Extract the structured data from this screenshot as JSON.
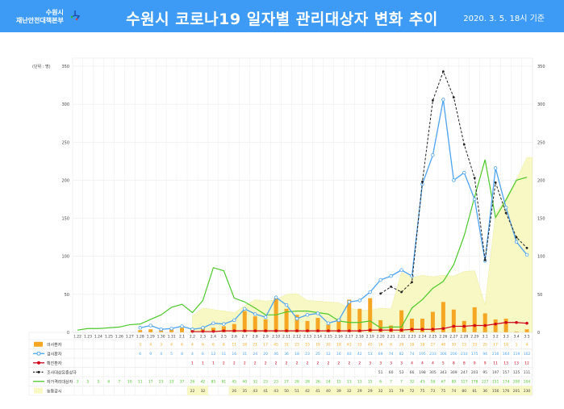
{
  "header": {
    "logo_line1": "수원시",
    "logo_line2": "재난안전대책본부",
    "title": "수원시 코로나19  일자별 관리대상자 변화 추이",
    "basis": "2020. 3. 5.  18시 기준"
  },
  "chart_data": {
    "type": "bar+line",
    "title": "수원시 코로나19 일자별 관리대상자 변화 추이",
    "unit_label": "(단위 : 명)",
    "ylim": [
      0,
      350
    ],
    "yticks": [
      0,
      50,
      100,
      150,
      200,
      250,
      300,
      350
    ],
    "grid": true,
    "categories": [
      "1.22",
      "1.23",
      "1.24",
      "1.25",
      "1.26",
      "1.27",
      "1.28",
      "1.29",
      "1.30",
      "1.31",
      "2.1",
      "2.2",
      "2.3",
      "2.4",
      "2.5",
      "2.6",
      "2.7",
      "2.8",
      "2.9",
      "2.10",
      "2.11",
      "2.12",
      "2.13",
      "2.14",
      "2.15",
      "2.16",
      "2.17",
      "2.18",
      "2.19",
      "2.20",
      "2.21",
      "2.22",
      "2.23",
      "2.24",
      "2.25",
      "2.26",
      "2.27",
      "2.28",
      "2.29",
      "3.1",
      "3.2",
      "3.3",
      "3.4",
      "3.5"
    ],
    "series": [
      {
        "name": "의사환자",
        "kind": "bar",
        "color": "#f5a623",
        "values": [
          null,
          null,
          null,
          null,
          null,
          null,
          3,
          4,
          3,
          4,
          6,
          4,
          6,
          6,
          8,
          11,
          28,
          21,
          17,
          45,
          31,
          23,
          15,
          19,
          10,
          18,
          43,
          31,
          45,
          16,
          9,
          29,
          18,
          18,
          27,
          40,
          30,
          15,
          33,
          25,
          17,
          18,
          1,
          4
        ]
      },
      {
        "name": "검사환자",
        "kind": "line-marker-open",
        "color": "#4da3ef",
        "values": [
          null,
          null,
          null,
          null,
          null,
          null,
          6,
          9,
          4,
          5,
          8,
          4,
          6,
          12,
          11,
          16,
          31,
          24,
          20,
          46,
          36,
          18,
          23,
          25,
          12,
          16,
          40,
          42,
          53,
          69,
          74,
          82,
          74,
          195,
          233,
          306,
          200,
          210,
          175,
          94,
          216,
          164,
          119,
          102
        ]
      },
      {
        "name": "확진환자",
        "kind": "line-marker-filled",
        "color": "#d0021b",
        "values": [
          null,
          null,
          null,
          null,
          null,
          null,
          null,
          null,
          null,
          null,
          null,
          1,
          1,
          1,
          2,
          2,
          2,
          2,
          2,
          2,
          2,
          2,
          2,
          2,
          2,
          2,
          2,
          2,
          3,
          3,
          3,
          3,
          4,
          4,
          4,
          5,
          8,
          8,
          9,
          9,
          11,
          13,
          13,
          12
        ]
      },
      {
        "name": "조사대상유증상자",
        "kind": "dashed-line",
        "color": "#222222",
        "values": [
          null,
          null,
          null,
          null,
          null,
          null,
          null,
          null,
          null,
          null,
          null,
          null,
          null,
          null,
          null,
          null,
          null,
          null,
          null,
          null,
          null,
          null,
          null,
          null,
          null,
          null,
          null,
          null,
          null,
          51,
          60,
          53,
          66,
          198,
          305,
          343,
          309,
          247,
          203,
          95,
          197,
          157,
          125,
          111
        ]
      },
      {
        "name": "자가격리대상자",
        "kind": "line",
        "color": "#4cc92a",
        "values": [
          3,
          5,
          5,
          6,
          7,
          10,
          11,
          17,
          23,
          33,
          37,
          26,
          42,
          85,
          81,
          45,
          40,
          32,
          23,
          23,
          27,
          28,
          28,
          26,
          24,
          15,
          13,
          13,
          15,
          6,
          7,
          7,
          32,
          43,
          58,
          67,
          89,
          127,
          178,
          227,
          151,
          174,
          200,
          204
        ]
      },
      {
        "name": "능동감시",
        "kind": "area",
        "color": "#f8f8c4",
        "values": [
          null,
          null,
          null,
          null,
          null,
          null,
          null,
          null,
          null,
          null,
          null,
          22,
          32,
          null,
          null,
          26,
          35,
          43,
          41,
          43,
          50,
          51,
          42,
          41,
          40,
          39,
          32,
          29,
          29,
          32,
          31,
          79,
          72,
          75,
          73,
          75,
          74,
          80,
          81,
          36,
          156,
          176,
          201,
          230
        ]
      }
    ]
  }
}
